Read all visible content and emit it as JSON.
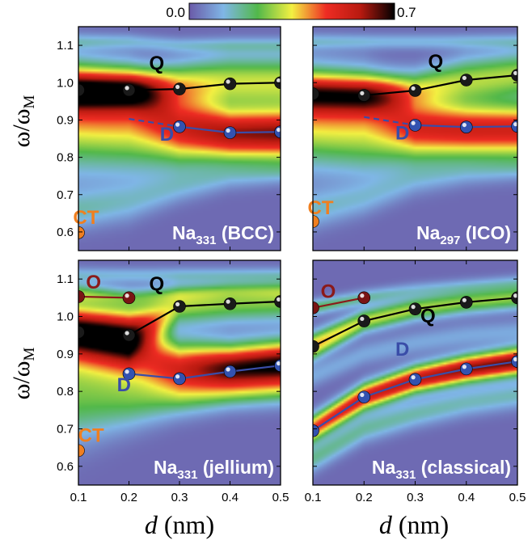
{
  "colorbar": {
    "min_label": "0.0",
    "max_label": "0.7",
    "min": 0.0,
    "max": 0.7,
    "colors": [
      "#6a5aa8",
      "#7fb6e6",
      "#52b84a",
      "#f3f042",
      "#ee2c23",
      "#b81a10",
      "#000000"
    ]
  },
  "axes": {
    "ylabel_main": "ω/ω",
    "ylabel_sub": "M",
    "xlabel_italic": "d",
    "xlabel_unit": " (nm)",
    "x_ticks": [
      "0.1",
      "0.2",
      "0.3",
      "0.4",
      "0.5"
    ],
    "y_ticks": [
      "0.6",
      "0.7",
      "0.8",
      "0.9",
      "1.0",
      "1.1"
    ]
  },
  "chart_data": [
    {
      "type": "heatmap",
      "title_main": "Na",
      "title_sub": "331",
      "title_suffix": " (BCC)",
      "xlim": [
        0.1,
        0.5
      ],
      "ylim": [
        0.55,
        1.15
      ],
      "series": [
        {
          "name": "Q",
          "color": "#000000",
          "x": [
            0.1,
            0.2,
            0.3,
            0.4,
            0.5
          ],
          "y": [
            0.98,
            0.98,
            0.983,
            0.997,
            1.0
          ],
          "ball": "#1a1a1a"
        },
        {
          "name": "D",
          "color": "#3a4da8",
          "x": [
            0.3,
            0.4,
            0.5
          ],
          "y": [
            0.882,
            0.866,
            0.868
          ],
          "ball": "#3352b0",
          "dash_x": [
            0.2,
            0.3
          ],
          "dash_y": [
            0.903,
            0.882
          ]
        },
        {
          "name": "CT",
          "color": "#f07f1f",
          "x": [
            0.1
          ],
          "y": [
            0.598
          ],
          "ball": "#f07f1f"
        }
      ],
      "labels": [
        {
          "text": "Q",
          "x": 0.255,
          "y": 1.035,
          "color": "#000000"
        },
        {
          "text": "D",
          "x": 0.275,
          "y": 0.845,
          "color": "#3a4da8"
        },
        {
          "text": "CT",
          "x": 0.115,
          "y": 0.622,
          "color": "#f07f1f"
        }
      ],
      "bands": [
        {
          "x": [
            0.1,
            0.2,
            0.3,
            0.4,
            0.5
          ],
          "y": [
            0.98,
            0.98,
            0.99,
            1.0,
            1.0
          ],
          "w": [
            0.05,
            0.05,
            0.06,
            0.07,
            0.07
          ],
          "c": [
            0.45,
            0.45,
            0.35,
            0.3,
            0.3
          ]
        },
        {
          "x": [
            0.1,
            0.2,
            0.3,
            0.4,
            0.5
          ],
          "y": [
            0.96,
            0.95,
            0.89,
            0.87,
            0.87
          ],
          "w": [
            0.1,
            0.09,
            0.07,
            0.06,
            0.06
          ],
          "c": [
            0.28,
            0.32,
            0.38,
            0.5,
            0.52
          ]
        },
        {
          "x": [
            0.1,
            0.2,
            0.3,
            0.4,
            0.5
          ],
          "y": [
            0.87,
            0.85,
            0.83,
            0.82,
            0.82
          ],
          "w": [
            0.12,
            0.1,
            0.08,
            0.06,
            0.06
          ],
          "c": [
            0.22,
            0.22,
            0.2,
            0.15,
            0.15
          ]
        },
        {
          "x": [
            0.1,
            0.2,
            0.3,
            0.4,
            0.5
          ],
          "y": [
            0.66,
            0.68,
            0.72,
            0.75,
            0.76
          ],
          "w": [
            0.05,
            0.05,
            0.04,
            0.035,
            0.03
          ],
          "c": [
            0.13,
            0.11,
            0.09,
            0.08,
            0.08
          ]
        },
        {
          "x": [
            0.1,
            0.2,
            0.3,
            0.4,
            0.5
          ],
          "y": [
            1.11,
            1.11,
            1.1,
            1.1,
            1.1
          ],
          "w": [
            0.02,
            0.02,
            0.02,
            0.02,
            0.02
          ],
          "c": [
            0.1,
            0.1,
            0.1,
            0.1,
            0.1
          ]
        }
      ]
    },
    {
      "type": "heatmap",
      "title_main": "Na",
      "title_sub": "297",
      "title_suffix": " (ICO)",
      "xlim": [
        0.1,
        0.5
      ],
      "ylim": [
        0.55,
        1.15
      ],
      "series": [
        {
          "name": "Q",
          "color": "#000000",
          "x": [
            0.1,
            0.2,
            0.3,
            0.4,
            0.5
          ],
          "y": [
            0.97,
            0.966,
            0.979,
            1.007,
            1.02
          ],
          "ball": "#1a1a1a"
        },
        {
          "name": "D",
          "color": "#3a4da8",
          "x": [
            0.3,
            0.4,
            0.5
          ],
          "y": [
            0.886,
            0.881,
            0.883
          ],
          "ball": "#3352b0",
          "dash_x": [
            0.2,
            0.3
          ],
          "dash_y": [
            0.908,
            0.886
          ]
        },
        {
          "name": "CT",
          "color": "#f07f1f",
          "x": [
            0.1
          ],
          "y": [
            0.628
          ],
          "ball": "#f07f1f"
        }
      ],
      "labels": [
        {
          "text": "Q",
          "x": 0.34,
          "y": 1.04,
          "color": "#000000"
        },
        {
          "text": "D",
          "x": 0.275,
          "y": 0.848,
          "color": "#3a4da8"
        },
        {
          "text": "CT",
          "x": 0.115,
          "y": 0.648,
          "color": "#f07f1f"
        }
      ],
      "bands": [
        {
          "x": [
            0.1,
            0.2,
            0.3,
            0.4,
            0.5
          ],
          "y": [
            0.97,
            0.967,
            0.98,
            1.005,
            1.02
          ],
          "w": [
            0.05,
            0.05,
            0.05,
            0.06,
            0.06
          ],
          "c": [
            0.4,
            0.4,
            0.3,
            0.28,
            0.28
          ]
        },
        {
          "x": [
            0.1,
            0.2,
            0.3,
            0.4,
            0.5
          ],
          "y": [
            0.95,
            0.94,
            0.89,
            0.885,
            0.885
          ],
          "w": [
            0.1,
            0.09,
            0.065,
            0.06,
            0.06
          ],
          "c": [
            0.24,
            0.28,
            0.4,
            0.42,
            0.42
          ]
        },
        {
          "x": [
            0.1,
            0.2,
            0.3,
            0.4,
            0.5
          ],
          "y": [
            0.86,
            0.84,
            0.83,
            0.83,
            0.83
          ],
          "w": [
            0.1,
            0.09,
            0.07,
            0.06,
            0.06
          ],
          "c": [
            0.2,
            0.2,
            0.18,
            0.18,
            0.18
          ]
        },
        {
          "x": [
            0.1,
            0.2,
            0.3,
            0.4,
            0.5
          ],
          "y": [
            0.66,
            0.69,
            0.74,
            0.76,
            0.77
          ],
          "w": [
            0.05,
            0.045,
            0.04,
            0.035,
            0.03
          ],
          "c": [
            0.12,
            0.1,
            0.08,
            0.07,
            0.07
          ]
        },
        {
          "x": [
            0.1,
            0.2,
            0.3,
            0.4,
            0.5
          ],
          "y": [
            1.11,
            1.11,
            1.11,
            1.11,
            1.11
          ],
          "w": [
            0.02,
            0.02,
            0.02,
            0.02,
            0.02
          ],
          "c": [
            0.1,
            0.1,
            0.1,
            0.1,
            0.1
          ]
        }
      ]
    },
    {
      "type": "heatmap",
      "title_main": "Na",
      "title_sub": "331",
      "title_suffix": " (jellium)",
      "xlim": [
        0.1,
        0.5
      ],
      "ylim": [
        0.55,
        1.15
      ],
      "series": [
        {
          "name": "O",
          "color": "#8b1a1a",
          "x": [
            0.1,
            0.2
          ],
          "y": [
            1.053,
            1.05
          ],
          "ball": "#7a1414"
        },
        {
          "name": "Q",
          "color": "#000000",
          "x": [
            0.1,
            0.2,
            0.3,
            0.4,
            0.5
          ],
          "y": [
            0.958,
            0.95,
            1.027,
            1.034,
            1.04
          ],
          "ball": "#1a1a1a"
        },
        {
          "name": "D",
          "color": "#3a4da8",
          "x": [
            0.2,
            0.3,
            0.4,
            0.5
          ],
          "y": [
            0.847,
            0.834,
            0.853,
            0.869
          ],
          "ball": "#3352b0"
        },
        {
          "name": "CT",
          "color": "#f07f1f",
          "x": [
            0.1
          ],
          "y": [
            0.642
          ],
          "ball": "#f07f1f"
        }
      ],
      "labels": [
        {
          "text": "O",
          "x": 0.13,
          "y": 1.075,
          "color": "#8b1a1a"
        },
        {
          "text": "Q",
          "x": 0.255,
          "y": 1.07,
          "color": "#000000"
        },
        {
          "text": "D",
          "x": 0.19,
          "y": 0.8,
          "color": "#3a4da8"
        },
        {
          "text": "CT",
          "x": 0.125,
          "y": 0.665,
          "color": "#f07f1f"
        }
      ],
      "bands": [
        {
          "x": [
            0.1,
            0.2,
            0.3,
            0.4,
            0.5
          ],
          "y": [
            0.96,
            0.95,
            1.03,
            1.035,
            1.04
          ],
          "w": [
            0.06,
            0.07,
            0.05,
            0.05,
            0.05
          ],
          "c": [
            0.45,
            0.45,
            0.28,
            0.25,
            0.25
          ]
        },
        {
          "x": [
            0.1,
            0.2,
            0.3,
            0.4,
            0.5
          ],
          "y": [
            0.93,
            0.9,
            0.86,
            0.86,
            0.87
          ],
          "w": [
            0.1,
            0.09,
            0.07,
            0.06,
            0.06
          ],
          "c": [
            0.35,
            0.4,
            0.5,
            0.66,
            0.7
          ]
        },
        {
          "x": [
            0.1,
            0.2,
            0.3,
            0.4,
            0.5
          ],
          "y": [
            1.06,
            1.05,
            1.06,
            1.07,
            1.07
          ],
          "w": [
            0.025,
            0.025,
            0.02,
            0.02,
            0.02
          ],
          "c": [
            0.2,
            0.15,
            0.1,
            0.1,
            0.1
          ]
        },
        {
          "x": [
            0.1,
            0.2,
            0.3,
            0.4,
            0.5
          ],
          "y": [
            0.77,
            0.77,
            0.78,
            0.79,
            0.8
          ],
          "w": [
            0.1,
            0.07,
            0.05,
            0.04,
            0.04
          ],
          "c": [
            0.2,
            0.18,
            0.14,
            0.12,
            0.12
          ]
        },
        {
          "x": [
            0.1,
            0.2,
            0.3,
            0.4,
            0.5
          ],
          "y": [
            1.11,
            1.11,
            1.11,
            1.11,
            1.11
          ],
          "w": [
            0.02,
            0.02,
            0.02,
            0.02,
            0.02
          ],
          "c": [
            0.1,
            0.1,
            0.1,
            0.1,
            0.1
          ]
        }
      ]
    },
    {
      "type": "heatmap",
      "title_main": "Na",
      "title_sub": "331",
      "title_suffix": " (classical)",
      "xlim": [
        0.1,
        0.5
      ],
      "ylim": [
        0.55,
        1.15
      ],
      "series": [
        {
          "name": "O",
          "color": "#8b1a1a",
          "x": [
            0.1,
            0.2
          ],
          "y": [
            1.023,
            1.05
          ],
          "ball": "#7a1414"
        },
        {
          "name": "Q",
          "color": "#000000",
          "x": [
            0.1,
            0.2,
            0.3,
            0.4,
            0.5
          ],
          "y": [
            0.92,
            0.988,
            1.02,
            1.038,
            1.05
          ],
          "ball": "#1a1a1a"
        },
        {
          "name": "D",
          "color": "#3a4da8",
          "x": [
            0.1,
            0.2,
            0.3,
            0.4,
            0.5
          ],
          "y": [
            0.695,
            0.785,
            0.832,
            0.86,
            0.88
          ],
          "ball": "#3352b0"
        }
      ],
      "labels": [
        {
          "text": "O",
          "x": 0.13,
          "y": 1.05,
          "color": "#8b1a1a"
        },
        {
          "text": "Q",
          "x": 0.325,
          "y": 0.985,
          "color": "#000000"
        },
        {
          "text": "D",
          "x": 0.275,
          "y": 0.895,
          "color": "#3a4da8"
        }
      ],
      "bands": [
        {
          "x": [
            0.1,
            0.2,
            0.3,
            0.4,
            0.5
          ],
          "y": [
            0.7,
            0.785,
            0.832,
            0.86,
            0.88
          ],
          "w": [
            0.035,
            0.035,
            0.035,
            0.035,
            0.035
          ],
          "c": [
            0.45,
            0.52,
            0.55,
            0.6,
            0.62
          ]
        },
        {
          "x": [
            0.1,
            0.2,
            0.3,
            0.4,
            0.5
          ],
          "y": [
            0.92,
            0.988,
            1.02,
            1.038,
            1.05
          ],
          "w": [
            0.035,
            0.03,
            0.03,
            0.03,
            0.03
          ],
          "c": [
            0.38,
            0.3,
            0.28,
            0.26,
            0.26
          ]
        },
        {
          "x": [
            0.1,
            0.2,
            0.3,
            0.4,
            0.5
          ],
          "y": [
            1.023,
            1.05,
            1.07,
            1.08,
            1.09
          ],
          "w": [
            0.02,
            0.02,
            0.02,
            0.02,
            0.02
          ],
          "c": [
            0.2,
            0.15,
            0.1,
            0.1,
            0.1
          ]
        },
        {
          "x": [
            0.1,
            0.2,
            0.3,
            0.4,
            0.5
          ],
          "y": [
            0.62,
            0.7,
            0.74,
            0.77,
            0.79
          ],
          "w": [
            0.035,
            0.035,
            0.035,
            0.035,
            0.035
          ],
          "c": [
            0.16,
            0.15,
            0.14,
            0.13,
            0.13
          ]
        },
        {
          "x": [
            0.1,
            0.2,
            0.3,
            0.4,
            0.5
          ],
          "y": [
            0.84,
            0.9,
            0.93,
            0.95,
            0.96
          ],
          "w": [
            0.03,
            0.03,
            0.03,
            0.03,
            0.03
          ],
          "c": [
            0.08,
            0.08,
            0.08,
            0.08,
            0.08
          ]
        }
      ]
    }
  ]
}
